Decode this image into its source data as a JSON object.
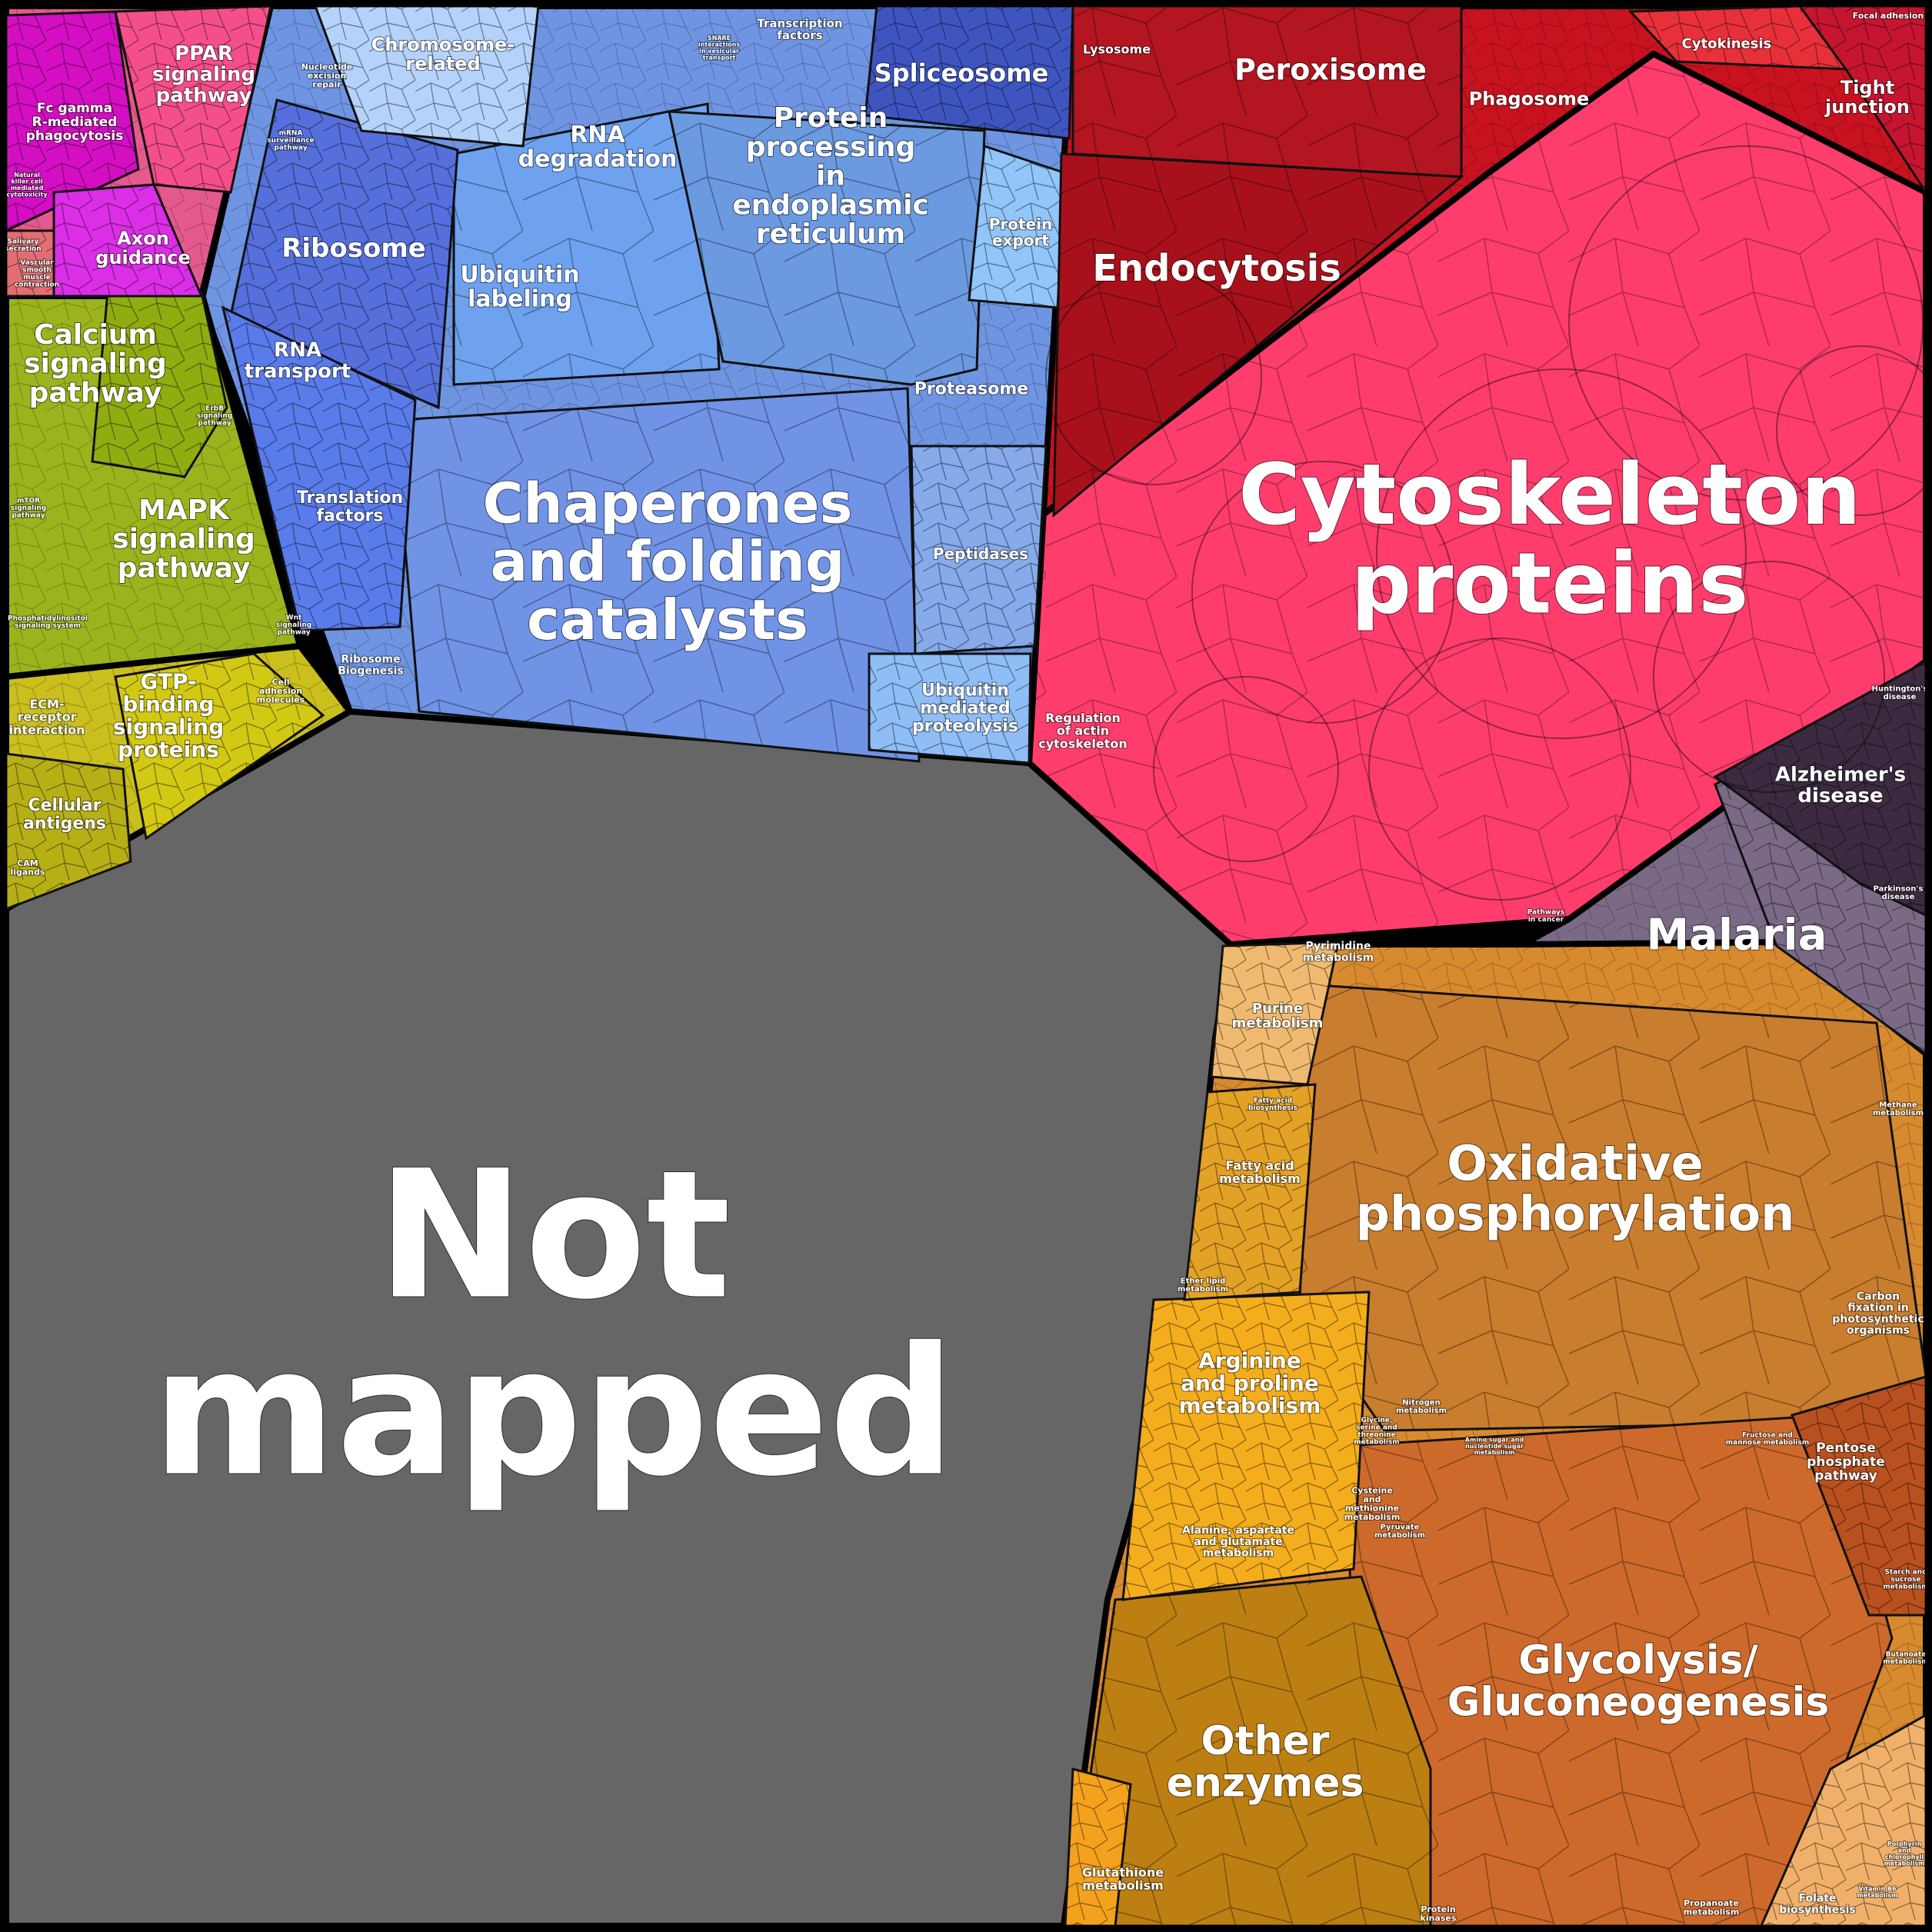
{
  "chart_data": {
    "type": "voronoi-treemap",
    "title": "",
    "colors": {
      "not_mapped": "#666666",
      "genetic_information": "#6f95e2",
      "cytoskeleton": "#ff3d6c",
      "cellular_processes": "#c8121f",
      "metabolism": "#d88a2e",
      "signaling": "#9db31e",
      "gtp_group": "#cbbf1e",
      "organismal": "#e45a8e",
      "disease": "#7b6a86"
    },
    "regions": [
      {
        "key": "not_mapped",
        "label": "Not mapped",
        "group": "not_mapped",
        "size": "xl"
      },
      {
        "key": "cytoskeleton",
        "label": "Cytoskeleton proteins",
        "group": "cytoskeleton",
        "size": "xl"
      },
      {
        "key": "chaperones",
        "label": "Chaperones and folding catalysts",
        "group": "genetic_information",
        "size": "l"
      },
      {
        "key": "oxphos",
        "label": "Oxidative phosphorylation",
        "group": "metabolism",
        "size": "l"
      },
      {
        "key": "glycolysis",
        "label": "Glycolysis/ Gluconeogenesis",
        "group": "metabolism",
        "size": "l"
      },
      {
        "key": "other_enzymes",
        "label": "Other enzymes",
        "group": "metabolism",
        "size": "m"
      },
      {
        "key": "endocytosis",
        "label": "Endocytosis",
        "group": "cellular_processes",
        "size": "m"
      },
      {
        "key": "peroxisome",
        "label": "Peroxisome",
        "group": "cellular_processes",
        "size": "m"
      },
      {
        "key": "phagosome",
        "label": "Phagosome",
        "group": "cellular_processes",
        "size": "s"
      },
      {
        "key": "lysosome",
        "label": "Lysosome",
        "group": "cellular_processes",
        "size": "xs"
      },
      {
        "key": "cytokinesis",
        "label": "Cytokinesis",
        "group": "cellular_processes",
        "size": "xs"
      },
      {
        "key": "tight_junction",
        "label": "Tight junction",
        "group": "cellular_processes",
        "size": "s"
      },
      {
        "key": "focal_adhesion",
        "label": "Focal adhesion",
        "group": "cellular_processes",
        "size": "xs"
      },
      {
        "key": "malaria",
        "label": "Malaria",
        "group": "disease",
        "size": "m"
      },
      {
        "key": "alzheimers",
        "label": "Alzheimer's disease",
        "group": "disease",
        "size": "s"
      },
      {
        "key": "parkinsons",
        "label": "Parkinson's disease",
        "group": "disease",
        "size": "xs"
      },
      {
        "key": "huntingtons",
        "label": "Huntington's disease",
        "group": "disease",
        "size": "xs"
      },
      {
        "key": "pathways_in_cancer",
        "label": "Pathways in cancer",
        "group": "disease",
        "size": "xs"
      },
      {
        "key": "regulation_actin",
        "label": "Regulation of actin cytoskeleton",
        "group": "cytoskeleton",
        "size": "xs"
      },
      {
        "key": "protein_processing_er",
        "label": "Protein processing in endoplasmic reticulum",
        "group": "genetic_information",
        "size": "m"
      },
      {
        "key": "rna_degradation",
        "label": "RNA degradation",
        "group": "genetic_information",
        "size": "s"
      },
      {
        "key": "ubiquitin_labeling",
        "label": "Ubiquitin labeling",
        "group": "genetic_information",
        "size": "s"
      },
      {
        "key": "ribosome",
        "label": "Ribosome",
        "group": "genetic_information",
        "size": "m"
      },
      {
        "key": "rna_transport",
        "label": "RNA transport",
        "group": "genetic_information",
        "size": "s"
      },
      {
        "key": "translation_factors",
        "label": "Translation factors",
        "group": "genetic_information",
        "size": "s"
      },
      {
        "key": "ribosome_biogenesis",
        "label": "Ribosome Biogenesis",
        "group": "genetic_information",
        "size": "xs"
      },
      {
        "key": "spliceosome",
        "label": "Spliceosome",
        "group": "genetic_information",
        "size": "s"
      },
      {
        "key": "chromosome_related",
        "label": "Chromosome-related",
        "group": "genetic_information",
        "size": "s"
      },
      {
        "key": "transcription_factors",
        "label": "Transcription factors",
        "group": "genetic_information",
        "size": "xs"
      },
      {
        "key": "protein_export",
        "label": "Protein export",
        "group": "genetic_information",
        "size": "s"
      },
      {
        "key": "proteasome",
        "label": "Proteasome",
        "group": "genetic_information",
        "size": "s"
      },
      {
        "key": "peptidases",
        "label": "Peptidases",
        "group": "genetic_information",
        "size": "s"
      },
      {
        "key": "ubiquitin_proteolysis",
        "label": "Ubiquitin mediated proteolysis",
        "group": "genetic_information",
        "size": "s"
      },
      {
        "key": "nucleotide_excision",
        "label": "Nucleotide excision repair",
        "group": "genetic_information",
        "size": "xs"
      },
      {
        "key": "mrna_surveillance",
        "label": "mRNA surveillance pathway",
        "group": "genetic_information",
        "size": "xs"
      },
      {
        "key": "snare",
        "label": "SNARE interactions in vesicular transport",
        "group": "genetic_information",
        "size": "xs"
      },
      {
        "key": "ppar",
        "label": "PPAR signaling pathway",
        "group": "organismal",
        "size": "s"
      },
      {
        "key": "fc_gamma",
        "label": "Fc gamma R-mediated phagocytosis",
        "group": "organismal",
        "size": "xs"
      },
      {
        "key": "axon_guidance",
        "label": "Axon guidance",
        "group": "organismal",
        "size": "s"
      },
      {
        "key": "nk_cytotoxicity",
        "label": "Natural killer cell mediated cytotoxicity",
        "group": "organismal",
        "size": "xs"
      },
      {
        "key": "salivary_secretion",
        "label": "Salivary secretion",
        "group": "organismal",
        "size": "xs"
      },
      {
        "key": "vascular_smooth",
        "label": "Vascular smooth muscle contraction",
        "group": "organismal",
        "size": "xs"
      },
      {
        "key": "calcium_signaling",
        "label": "Calcium signaling pathway",
        "group": "signaling",
        "size": "m"
      },
      {
        "key": "mapk_signaling",
        "label": "MAPK signaling pathway",
        "group": "signaling",
        "size": "m"
      },
      {
        "key": "erbb_signaling",
        "label": "ErbB signaling pathway",
        "group": "signaling",
        "size": "xs"
      },
      {
        "key": "mtor_signaling",
        "label": "mTOR signaling pathway",
        "group": "signaling",
        "size": "xs"
      },
      {
        "key": "phosphatidylinositol",
        "label": "Phosphatidylinositol signaling system",
        "group": "signaling",
        "size": "xs"
      },
      {
        "key": "wnt_signaling",
        "label": "Wnt signaling pathway",
        "group": "signaling",
        "size": "xs"
      },
      {
        "key": "gtp_binding",
        "label": "GTP-binding signaling proteins",
        "group": "gtp_group",
        "size": "s"
      },
      {
        "key": "ecm_receptor",
        "label": "ECM-receptor interaction",
        "group": "gtp_group",
        "size": "xs"
      },
      {
        "key": "cell_adhesion",
        "label": "Cell adhesion molecules",
        "group": "gtp_group",
        "size": "xs"
      },
      {
        "key": "cellular_antigens",
        "label": "Cellular antigens",
        "group": "gtp_group",
        "size": "s"
      },
      {
        "key": "cam_ligands",
        "label": "CAM ligands",
        "group": "gtp_group",
        "size": "xs"
      },
      {
        "key": "purine_metabolism",
        "label": "Purine metabolism",
        "group": "metabolism",
        "size": "s"
      },
      {
        "key": "pyrimidine_metabolism",
        "label": "Pyrimidine metabolism",
        "group": "metabolism",
        "size": "xs"
      },
      {
        "key": "fatty_acid_metabolism",
        "label": "Fatty acid metabolism",
        "group": "metabolism",
        "size": "s"
      },
      {
        "key": "fatty_acid_biosynthesis",
        "label": "Fatty acid biosynthesis",
        "group": "metabolism",
        "size": "xs"
      },
      {
        "key": "ether_lipid",
        "label": "Ether lipid metabolism",
        "group": "metabolism",
        "size": "xs"
      },
      {
        "key": "arginine_proline",
        "label": "Arginine and proline metabolism",
        "group": "metabolism",
        "size": "s"
      },
      {
        "key": "alanine_aspartate",
        "label": "Alanine, aspartate and glutamate metabolism",
        "group": "metabolism",
        "size": "xs"
      },
      {
        "key": "cysteine_methionine",
        "label": "Cysteine and methionine metabolism",
        "group": "metabolism",
        "size": "xs"
      },
      {
        "key": "glycine_serine",
        "label": "Glycine, serine and threonine metabolism",
        "group": "metabolism",
        "size": "xs"
      },
      {
        "key": "nitrogen_metabolism",
        "label": "Nitrogen metabolism",
        "group": "metabolism",
        "size": "xs"
      },
      {
        "key": "pyruvate_metabolism",
        "label": "Pyruvate metabolism",
        "group": "metabolism",
        "size": "xs"
      },
      {
        "key": "pentose_phosphate",
        "label": "Pentose phosphate pathway",
        "group": "metabolism",
        "size": "s"
      },
      {
        "key": "fructose_mannose",
        "label": "Fructose and mannose metabolism",
        "group": "metabolism",
        "size": "xs"
      },
      {
        "key": "methane_metabolism",
        "label": "Methane metabolism",
        "group": "metabolism",
        "size": "xs"
      },
      {
        "key": "carbon_fixation",
        "label": "Carbon fixation in photosynthetic organisms",
        "group": "metabolism",
        "size": "xs"
      },
      {
        "key": "amino_sugar",
        "label": "Amino sugar and nucleotide sugar metabolism",
        "group": "metabolism",
        "size": "xs"
      },
      {
        "key": "starch_sucrose",
        "label": "Starch and sucrose metabolism",
        "group": "metabolism",
        "size": "xs"
      },
      {
        "key": "butanoate",
        "label": "Butanoate metabolism",
        "group": "metabolism",
        "size": "xs"
      },
      {
        "key": "glutathione",
        "label": "Glutathione metabolism",
        "group": "metabolism",
        "size": "xs"
      },
      {
        "key": "propanoate",
        "label": "Propanoate metabolism",
        "group": "metabolism",
        "size": "xs"
      },
      {
        "key": "folate_biosynthesis",
        "label": "Folate biosynthesis",
        "group": "metabolism",
        "size": "xs"
      },
      {
        "key": "protein_kinases",
        "label": "Protein kinases",
        "group": "metabolism",
        "size": "xs"
      },
      {
        "key": "porphyrin",
        "label": "Porphyrin and chlorophyll metabolism",
        "group": "metabolism",
        "size": "xs"
      },
      {
        "key": "vitamin_b6",
        "label": "Vitamin B6 metabolism",
        "group": "metabolism",
        "size": "xs"
      }
    ]
  }
}
